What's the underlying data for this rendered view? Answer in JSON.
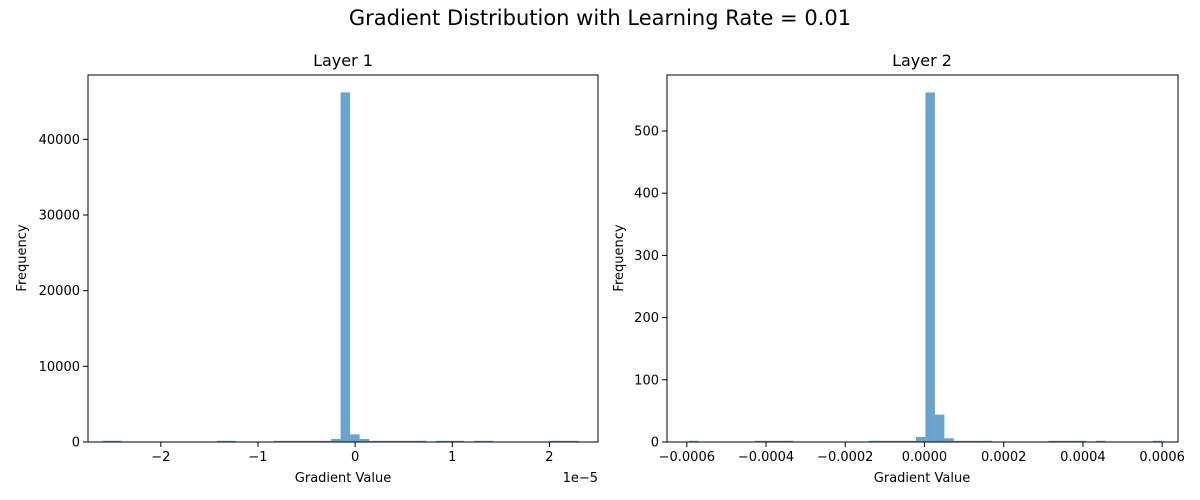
{
  "figure": {
    "title": "Gradient Distribution with Learning Rate = 0.01"
  },
  "colors": {
    "bar": "#6aa3cd",
    "axis": "#000000"
  },
  "chart_data": [
    {
      "type": "bar",
      "title": "Layer 1",
      "xlabel": "Gradient Value",
      "ylabel": "Frequency",
      "x_scale_label": "1e−5",
      "xlim": [
        -2.75,
        2.5
      ],
      "ylim": [
        0,
        48500
      ],
      "xticks": [
        -2,
        -1,
        0,
        1,
        2
      ],
      "xtick_labels": [
        "−2",
        "−1",
        "0",
        "1",
        "2"
      ],
      "yticks": [
        0,
        10000,
        20000,
        30000,
        40000
      ],
      "ytick_labels": [
        "0",
        "10000",
        "20000",
        "30000",
        "40000"
      ],
      "bin_start": -2.6,
      "bin_width": 0.098,
      "counts": [
        40,
        15,
        0,
        0,
        0,
        0,
        0,
        0,
        0,
        0,
        0,
        0,
        15,
        15,
        0,
        0,
        0,
        0,
        20,
        20,
        20,
        30,
        30,
        30,
        400,
        46200,
        1000,
        400,
        10,
        30,
        30,
        30,
        30,
        30,
        0,
        20,
        20,
        20,
        0,
        20,
        20,
        0,
        0,
        0,
        0,
        0,
        0,
        10,
        10,
        10
      ]
    },
    {
      "type": "bar",
      "title": "Layer 2",
      "xlabel": "Gradient Value",
      "ylabel": "Frequency",
      "xlim": [
        -0.00065,
        0.00064
      ],
      "ylim": [
        0,
        590
      ],
      "xticks": [
        -0.0006,
        -0.0004,
        -0.0002,
        0,
        0.0002,
        0.0004,
        0.0006
      ],
      "xtick_labels": [
        "−0.0006",
        "−0.0004",
        "−0.0002",
        "0.0000",
        "0.0002",
        "0.0004",
        "0.0006"
      ],
      "yticks": [
        0,
        100,
        200,
        300,
        400,
        500
      ],
      "ytick_labels": [
        "0",
        "100",
        "200",
        "300",
        "400",
        "500"
      ],
      "bin_start": -0.000595,
      "bin_width": 2.39e-05,
      "counts": [
        1,
        0,
        0,
        0,
        0,
        0,
        0,
        1,
        1,
        1,
        1,
        0,
        0,
        0,
        0,
        0,
        0,
        0,
        0,
        2,
        1,
        1,
        1,
        1,
        8,
        562,
        44,
        6,
        1,
        1,
        1,
        2,
        0,
        0,
        0,
        0,
        0,
        0,
        1,
        1,
        1,
        1,
        0,
        1,
        0,
        0,
        0,
        0,
        0,
        1
      ]
    }
  ]
}
